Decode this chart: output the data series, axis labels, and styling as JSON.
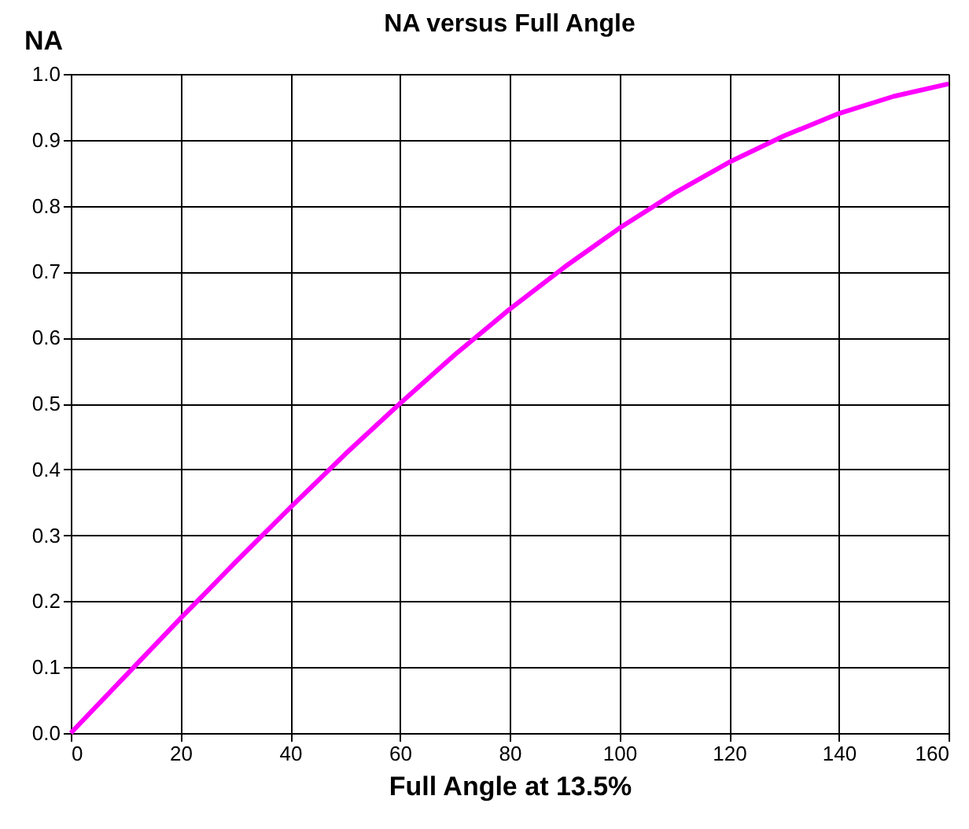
{
  "chart_data": {
    "type": "line",
    "title": "NA versus Full Angle",
    "xlabel": "Full Angle at 13.5%",
    "ylabel": "NA",
    "x": [
      0,
      10,
      20,
      30,
      40,
      50,
      60,
      70,
      80,
      90,
      100,
      110,
      120,
      130,
      140,
      150,
      160
    ],
    "series": [
      {
        "color": "#ff00ff",
        "values": [
          0,
          0.087,
          0.174,
          0.259,
          0.342,
          0.423,
          0.5,
          0.574,
          0.643,
          0.707,
          0.766,
          0.819,
          0.866,
          0.906,
          0.94,
          0.966,
          0.985
        ]
      }
    ],
    "xlim": [
      0,
      160
    ],
    "xticks": [
      0,
      20,
      40,
      60,
      80,
      100,
      120,
      140,
      160
    ],
    "ylim": [
      0,
      1
    ],
    "yticks": [
      {
        "value": 0,
        "label": "0.0"
      },
      {
        "value": 0.1,
        "label": "0.1"
      },
      {
        "value": 0.2,
        "label": "0.2"
      },
      {
        "value": 0.3,
        "label": "0.3"
      },
      {
        "value": 0.4,
        "label": "0.4"
      },
      {
        "value": 0.5,
        "label": "0.5"
      },
      {
        "value": 0.6,
        "label": "0.6"
      },
      {
        "value": 0.7,
        "label": "0.7"
      },
      {
        "value": 0.8,
        "label": "0.8"
      },
      {
        "value": 0.9,
        "label": "0.9"
      },
      {
        "value": 1,
        "label": "1.0"
      }
    ],
    "grid": true,
    "legend": false,
    "marker": "none",
    "line_style": "solid"
  }
}
